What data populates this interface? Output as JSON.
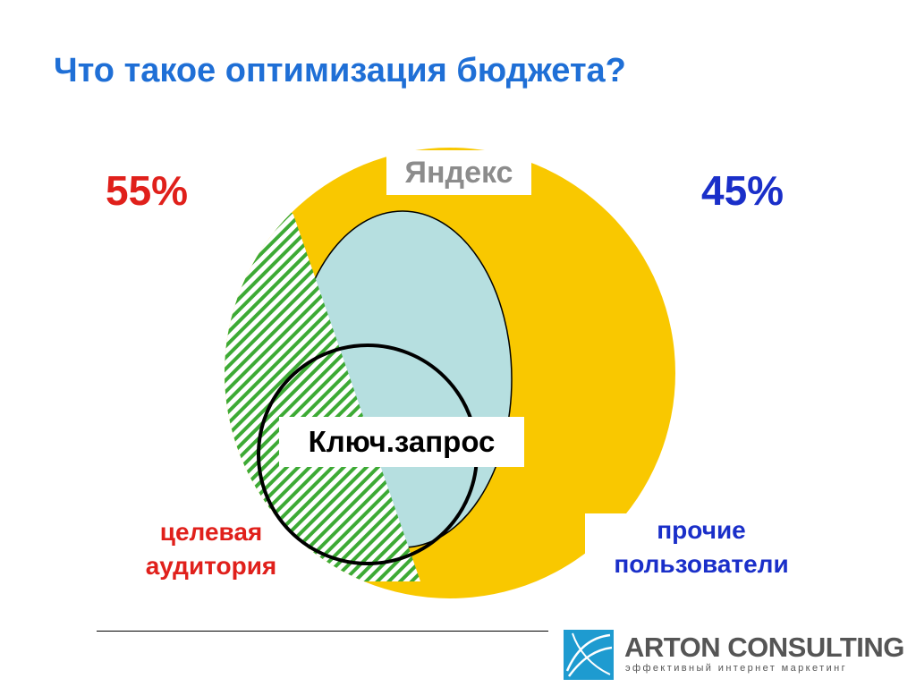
{
  "slide": {
    "title": "Что такое оптимизация бюджета?",
    "left_percent": "55%",
    "right_percent": "45%",
    "left_label": "целевая\nаудитория",
    "right_label": "прочие\nпользователи",
    "yandex_label": "Яндекс",
    "query_label": "Ключ.запрос"
  },
  "logo": {
    "name": "ARTON CONSULTING",
    "tagline": "эффективный интернет маркетинг"
  },
  "colors": {
    "title": "#1f6fd6",
    "left_percent": "#e0201b",
    "right_percent": "#1a2fc9",
    "left_label": "#e0201b",
    "right_label": "#1a2fc9",
    "yandex_label": "#8c8c8c",
    "outer_circle": "#f9c800",
    "inner_circle": "#b6dfe0",
    "hatch": "#3daa35",
    "logo_mark": "#1e9bd0"
  }
}
